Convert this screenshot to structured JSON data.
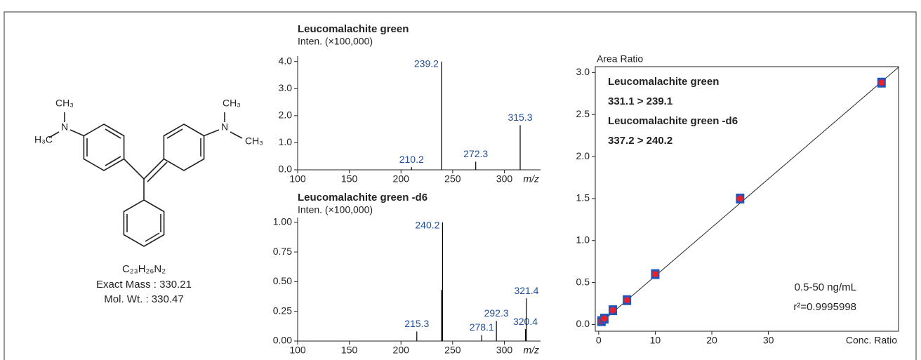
{
  "structure": {
    "labels": [
      "CH₃",
      "H₃C",
      "N",
      "N",
      "CH₃",
      "CH₃"
    ],
    "formula": "C₂₃H₂₆N₂",
    "exact_mass": "Exact Mass : 330.21",
    "mol_wt": "Mol. Wt. : 330.47"
  },
  "chart_data": [
    {
      "type": "spectrum",
      "title": "Leucomalachite green",
      "y_label": "Inten. (×100,000)",
      "x_label": "m/z",
      "x": [
        210.2,
        239.2,
        272.3,
        315.3
      ],
      "values": [
        0.1,
        4.0,
        0.3,
        1.65
      ],
      "peak_labels": [
        "210.2",
        "239.2",
        "272.3",
        "315.3"
      ],
      "xlim": [
        100,
        335
      ],
      "xticks": [
        100,
        150,
        200,
        250,
        300
      ],
      "ylim": [
        0,
        4.2
      ],
      "yticks": [
        {
          "value": 0,
          "label": "0.0"
        },
        {
          "value": 1,
          "label": "1.0"
        },
        {
          "value": 2,
          "label": "2.0"
        },
        {
          "value": 3,
          "label": "3.0"
        },
        {
          "value": 4,
          "label": "4.0"
        }
      ],
      "color": "#000000",
      "label_color": "#1f4e9a"
    },
    {
      "type": "spectrum",
      "title": "Leucomalachite green -d6",
      "y_label": "Inten. (×100,000)",
      "x_label": "m/z",
      "x": [
        215.3,
        239.2,
        240.2,
        278.1,
        292.3,
        320.4,
        321.4
      ],
      "values": [
        0.08,
        0.43,
        1.0,
        0.05,
        0.17,
        0.1,
        0.36
      ],
      "peak_labels": [
        "215.3",
        null,
        "240.2",
        "278.1",
        "292.3",
        "320.4",
        "321.4"
      ],
      "xlim": [
        100,
        335
      ],
      "xticks": [
        100,
        150,
        200,
        250,
        300
      ],
      "ylim": [
        0,
        1.04
      ],
      "yticks": [
        {
          "value": 0,
          "label": "0.00"
        },
        {
          "value": 0.25,
          "label": "0.25"
        },
        {
          "value": 0.5,
          "label": "0.50"
        },
        {
          "value": 0.75,
          "label": "0.75"
        },
        {
          "value": 1,
          "label": "1.00"
        }
      ],
      "color": "#000000",
      "label_color": "#1f4e9a"
    },
    {
      "type": "scatter",
      "y_label": "Area Ratio",
      "x_label": "Conc. Ratio",
      "annotations": [
        "Leucomalachite green",
        "331.1 > 239.1",
        "Leucomalachite green -d6",
        "337.2 > 240.2"
      ],
      "range_label": "0.5-50 ng/mL",
      "r2_label": "r²=0.9995998",
      "x": [
        0.5,
        1,
        2.5,
        5,
        10,
        25,
        50
      ],
      "values": [
        0.04,
        0.07,
        0.17,
        0.29,
        0.6,
        1.5,
        2.88
      ],
      "fit": {
        "slope": 0.0578,
        "intercept": 0
      },
      "xlim": [
        -0.6,
        53
      ],
      "xticks": [
        0,
        10,
        20,
        30
      ],
      "ylim": [
        -0.08,
        3.07
      ],
      "yticks": [
        {
          "value": 0,
          "label": "0.0"
        },
        {
          "value": 0.5,
          "label": "0.5"
        },
        {
          "value": 1,
          "label": "1.0"
        },
        {
          "value": 1.5,
          "label": "1.5"
        },
        {
          "value": 2,
          "label": "2.0"
        },
        {
          "value": 2.5,
          "label": "2.5"
        },
        {
          "value": 3,
          "label": "3.0"
        }
      ],
      "color": "#e8202a",
      "marker_color": "#2255bb"
    }
  ]
}
